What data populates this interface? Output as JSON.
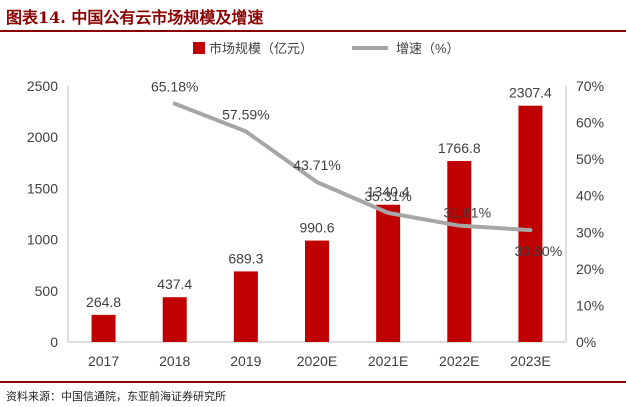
{
  "header": {
    "title": "图表14.  中国公有云市场规模及增速"
  },
  "footer": {
    "source": "资料来源：中国信通院，东亚前海证券研究所"
  },
  "colors": {
    "bar": "#c00000",
    "line": "#a6a6a6",
    "text": "#404040",
    "accent": "#8b0000"
  },
  "chart_data": {
    "type": "bar+line",
    "categories": [
      "2017",
      "2018",
      "2019",
      "2020E",
      "2021E",
      "2022E",
      "2023E"
    ],
    "series": [
      {
        "name": "市场规模（亿元）",
        "type": "bar",
        "axis": "left",
        "values": [
          264.8,
          437.4,
          689.3,
          990.6,
          1340.4,
          1766.8,
          2307.4
        ],
        "labels": [
          "264.8",
          "437.4",
          "689.3",
          "990.6",
          "1340.4",
          "1766.8",
          "2307.4"
        ]
      },
      {
        "name": "增速（%）",
        "type": "line",
        "axis": "right",
        "values": [
          null,
          65.18,
          57.59,
          43.71,
          35.31,
          31.81,
          30.6
        ],
        "labels": [
          null,
          "65.18%",
          "57.59%",
          "43.71%",
          "35.31%",
          "31.81%",
          "30.60%"
        ]
      }
    ],
    "y_left": {
      "min": 0,
      "max": 2500,
      "ticks": [
        "0",
        "500",
        "1000",
        "1500",
        "2000",
        "2500"
      ]
    },
    "y_right": {
      "min": 0,
      "max": 70,
      "ticks": [
        "0%",
        "10%",
        "20%",
        "30%",
        "40%",
        "50%",
        "60%",
        "70%"
      ]
    },
    "legend_position": "top"
  }
}
